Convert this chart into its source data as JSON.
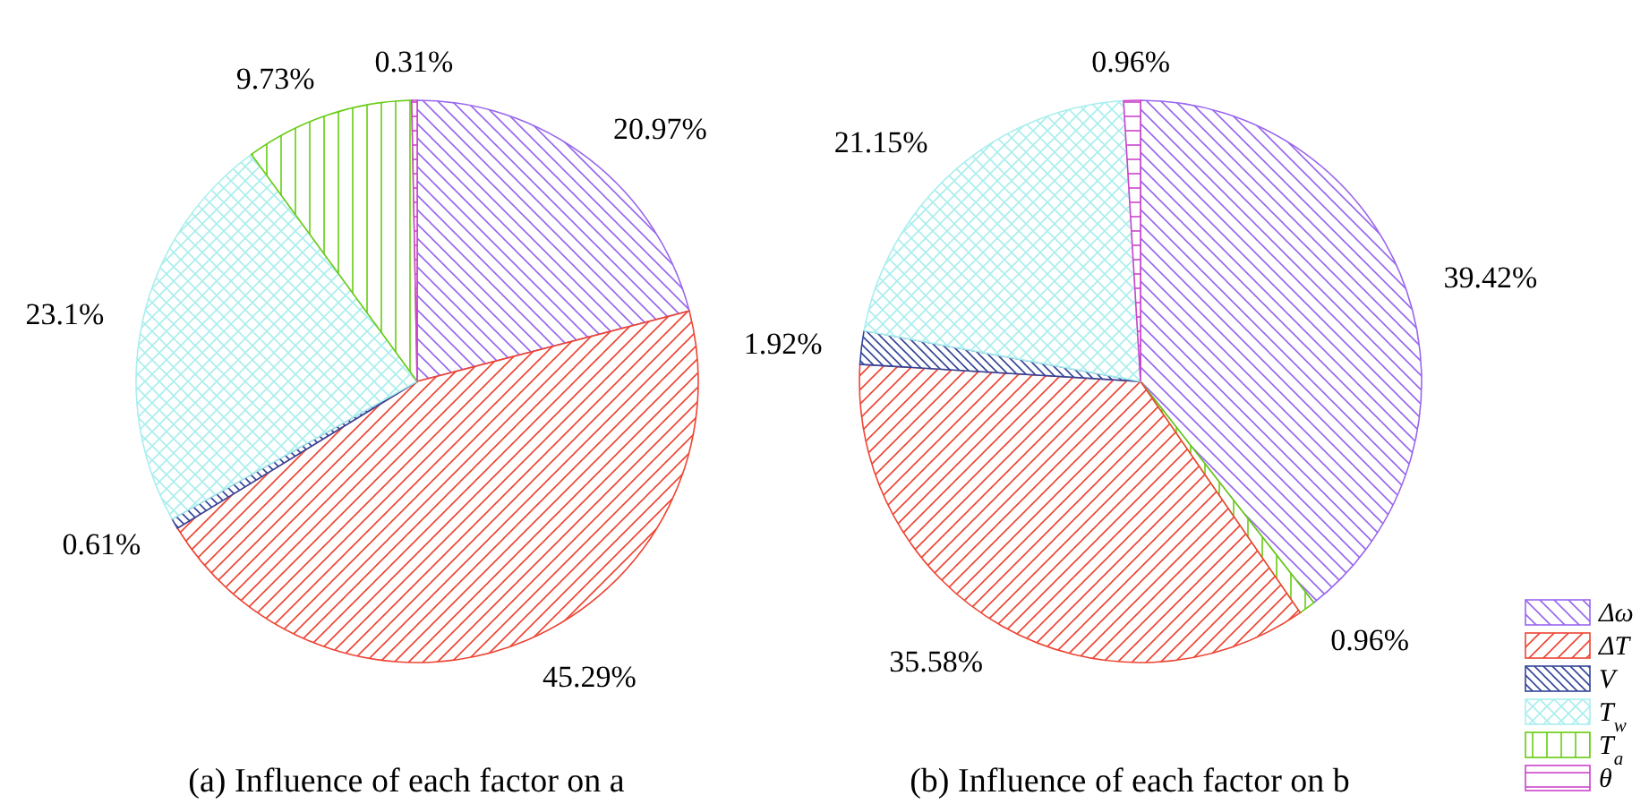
{
  "chart_data": [
    {
      "type": "pie",
      "xlabel": "(a) Influence of each factor on a",
      "categories": [
        "Δω",
        "ΔT",
        "V",
        "T$_{w}$",
        "T$_{a}$",
        "θ"
      ],
      "values": [
        20.97,
        45.29,
        0.61,
        23.1,
        9.73,
        0.31
      ],
      "colors": [
        "#9966ee",
        "#ee4433",
        "#334499",
        "#aaeeee",
        "#66cc11",
        "#cc44cc"
      ],
      "value_labels": [
        "20.97%",
        "45.29%",
        "0.61%",
        "23.1%",
        "9.73%",
        "0.31%"
      ],
      "legend": "bottom right"
    },
    {
      "type": "pie",
      "xlabel": "(b) Influence of each factor on b",
      "categories": [
        null,
        null,
        null,
        null,
        null,
        null
      ],
      "values": [
        39.42,
        0.96,
        35.58,
        1.92,
        21.15,
        0.96
      ],
      "colors": [
        "#9966ee",
        "#66cc11",
        "#ee4433",
        "#334499",
        "#aaeeee",
        "#cc44cc"
      ],
      "value_labels": [
        "39.42%",
        "0.96%",
        "35.58%",
        "1.92%",
        "21.15%",
        "0.96%"
      ]
    }
  ]
}
